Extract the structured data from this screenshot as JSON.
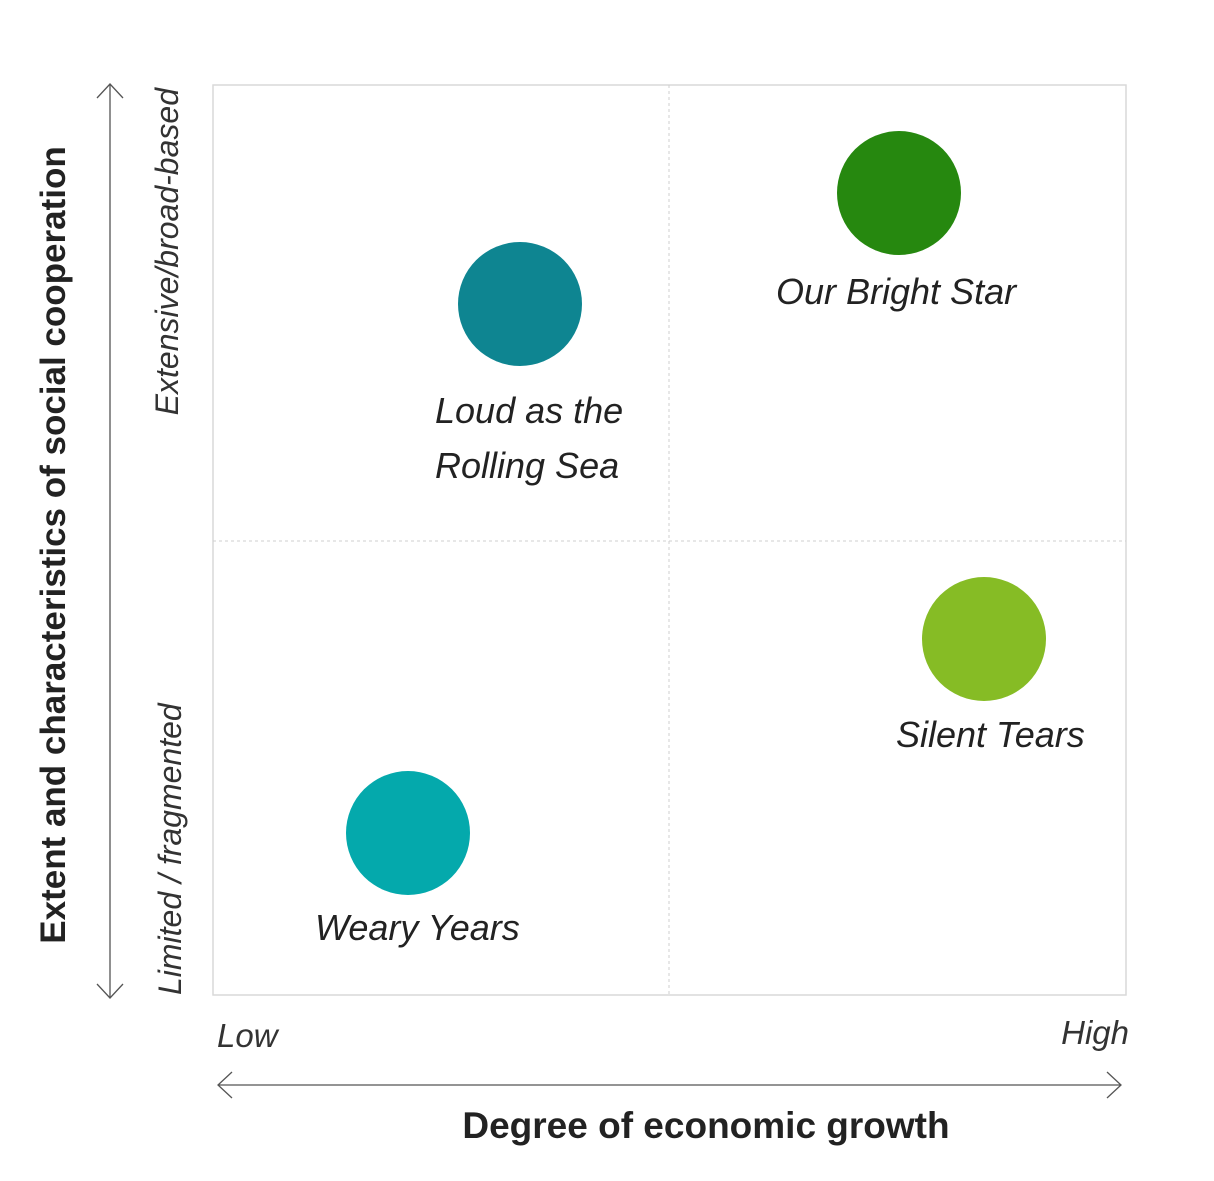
{
  "x_axis": {
    "title": "Degree of economic growth",
    "low_label": "Low",
    "high_label": "High"
  },
  "y_axis": {
    "title": "Extent and characteristics of social cooperation",
    "low_label": "Limited / fragmented",
    "high_label": "Extensive/broad-based"
  },
  "scenarios": [
    {
      "name": "Loud as the Rolling Sea",
      "lines": [
        "Loud as the",
        "Rolling Sea"
      ],
      "color": "#0E8591"
    },
    {
      "name": "Our Bright Star",
      "lines": [
        "Our Bright Star"
      ],
      "color": "#26880F"
    },
    {
      "name": "Silent Tears",
      "lines": [
        "Silent Tears"
      ],
      "color": "#86BC25"
    },
    {
      "name": "Weary Years",
      "lines": [
        "Weary Years"
      ],
      "color": "#04A9AC"
    }
  ],
  "colors": {
    "frame": "#d9d9d9",
    "divider": "#cfcfcf",
    "arrow": "#555555"
  }
}
